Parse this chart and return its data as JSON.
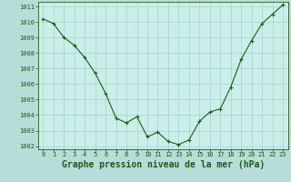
{
  "hours": [
    0,
    1,
    2,
    3,
    4,
    5,
    6,
    7,
    8,
    9,
    10,
    11,
    12,
    13,
    14,
    15,
    16,
    17,
    18,
    19,
    20,
    21,
    22,
    23
  ],
  "pressure": [
    1010.2,
    1009.9,
    1009.0,
    1008.5,
    1007.7,
    1006.7,
    1005.4,
    1003.8,
    1003.5,
    1003.9,
    1002.6,
    1002.9,
    1002.3,
    1002.1,
    1002.4,
    1003.6,
    1004.2,
    1004.4,
    1005.8,
    1007.6,
    1008.8,
    1009.9,
    1010.5,
    1011.1
  ],
  "ylim_min": 1001.8,
  "ylim_max": 1011.3,
  "yticks": [
    1002,
    1003,
    1004,
    1005,
    1006,
    1007,
    1008,
    1009,
    1010,
    1011
  ],
  "xticks": [
    0,
    1,
    2,
    3,
    4,
    5,
    6,
    7,
    8,
    9,
    10,
    11,
    12,
    13,
    14,
    15,
    16,
    17,
    18,
    19,
    20,
    21,
    22,
    23
  ],
  "line_color": "#1a5c1a",
  "marker_color": "#1a5c1a",
  "bg_plot": "#cceee8",
  "bg_fig": "#b8dcd8",
  "grid_color": "#99cccc",
  "xlabel": "Graphe pression niveau de la mer (hPa)",
  "xlabel_color": "#1a5c1a",
  "tick_color": "#1a5c1a",
  "tick_fontsize": 5.0,
  "xlabel_fontsize": 7.0
}
